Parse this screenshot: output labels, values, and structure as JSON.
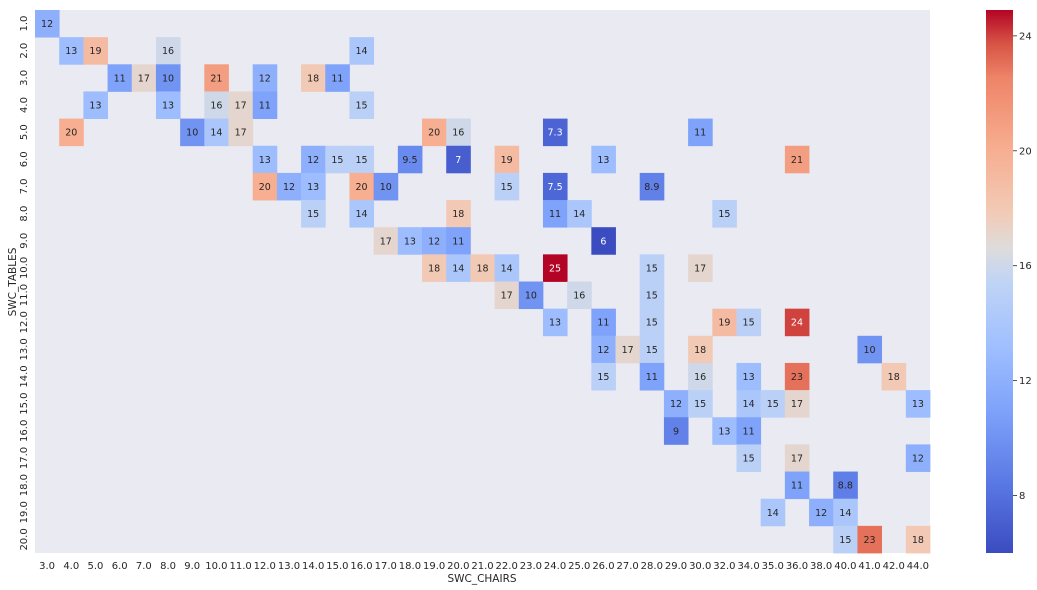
{
  "chart_data": {
    "type": "heatmap",
    "xlabel": "SWC_CHAIRS",
    "ylabel": "SWC_TABLES",
    "x": [
      "3.0",
      "4.0",
      "5.0",
      "6.0",
      "7.0",
      "8.0",
      "9.0",
      "10.0",
      "11.0",
      "12.0",
      "13.0",
      "14.0",
      "15.0",
      "16.0",
      "17.0",
      "18.0",
      "19.0",
      "20.0",
      "21.0",
      "22.0",
      "23.0",
      "24.0",
      "25.0",
      "26.0",
      "27.0",
      "28.0",
      "29.0",
      "30.0",
      "32.0",
      "34.0",
      "35.0",
      "36.0",
      "38.0",
      "40.0",
      "41.0",
      "42.0",
      "44.0"
    ],
    "y": [
      "1.0",
      "2.0",
      "3.0",
      "4.0",
      "5.0",
      "6.0",
      "7.0",
      "8.0",
      "9.0",
      "10.0",
      "11.0",
      "12.0",
      "13.0",
      "14.0",
      "15.0",
      "16.0",
      "17.0",
      "18.0",
      "19.0",
      "20.0"
    ],
    "cells": [
      [
        "1.0",
        "3.0",
        "12"
      ],
      [
        "2.0",
        "4.0",
        "13"
      ],
      [
        "2.0",
        "5.0",
        "19"
      ],
      [
        "2.0",
        "8.0",
        "16"
      ],
      [
        "2.0",
        "16.0",
        "14"
      ],
      [
        "3.0",
        "6.0",
        "11"
      ],
      [
        "3.0",
        "7.0",
        "17"
      ],
      [
        "3.0",
        "8.0",
        "10"
      ],
      [
        "3.0",
        "10.0",
        "21"
      ],
      [
        "3.0",
        "12.0",
        "12"
      ],
      [
        "3.0",
        "14.0",
        "18"
      ],
      [
        "3.0",
        "15.0",
        "11"
      ],
      [
        "4.0",
        "5.0",
        "13"
      ],
      [
        "4.0",
        "8.0",
        "13"
      ],
      [
        "4.0",
        "10.0",
        "16"
      ],
      [
        "4.0",
        "11.0",
        "17"
      ],
      [
        "4.0",
        "12.0",
        "11"
      ],
      [
        "4.0",
        "16.0",
        "15"
      ],
      [
        "5.0",
        "4.0",
        "20"
      ],
      [
        "5.0",
        "9.0",
        "10"
      ],
      [
        "5.0",
        "10.0",
        "14"
      ],
      [
        "5.0",
        "11.0",
        "17"
      ],
      [
        "5.0",
        "19.0",
        "20"
      ],
      [
        "5.0",
        "20.0",
        "16"
      ],
      [
        "5.0",
        "24.0",
        "7.3"
      ],
      [
        "5.0",
        "30.0",
        "11"
      ],
      [
        "6.0",
        "12.0",
        "13"
      ],
      [
        "6.0",
        "14.0",
        "12"
      ],
      [
        "6.0",
        "15.0",
        "15"
      ],
      [
        "6.0",
        "16.0",
        "15"
      ],
      [
        "6.0",
        "18.0",
        "9.5"
      ],
      [
        "6.0",
        "20.0",
        "7"
      ],
      [
        "6.0",
        "22.0",
        "19"
      ],
      [
        "6.0",
        "26.0",
        "13"
      ],
      [
        "6.0",
        "36.0",
        "21"
      ],
      [
        "7.0",
        "12.0",
        "20"
      ],
      [
        "7.0",
        "13.0",
        "12"
      ],
      [
        "7.0",
        "14.0",
        "13"
      ],
      [
        "7.0",
        "16.0",
        "20"
      ],
      [
        "7.0",
        "17.0",
        "10"
      ],
      [
        "7.0",
        "22.0",
        "15"
      ],
      [
        "7.0",
        "24.0",
        "7.5"
      ],
      [
        "7.0",
        "28.0",
        "8.9"
      ],
      [
        "8.0",
        "14.0",
        "15"
      ],
      [
        "8.0",
        "16.0",
        "14"
      ],
      [
        "8.0",
        "20.0",
        "18"
      ],
      [
        "8.0",
        "24.0",
        "11"
      ],
      [
        "8.0",
        "25.0",
        "14"
      ],
      [
        "8.0",
        "32.0",
        "15"
      ],
      [
        "9.0",
        "17.0",
        "17"
      ],
      [
        "9.0",
        "18.0",
        "13"
      ],
      [
        "9.0",
        "19.0",
        "12"
      ],
      [
        "9.0",
        "20.0",
        "11"
      ],
      [
        "9.0",
        "26.0",
        "6"
      ],
      [
        "10.0",
        "19.0",
        "18"
      ],
      [
        "10.0",
        "20.0",
        "14"
      ],
      [
        "10.0",
        "21.0",
        "18"
      ],
      [
        "10.0",
        "22.0",
        "14"
      ],
      [
        "10.0",
        "24.0",
        "25"
      ],
      [
        "10.0",
        "28.0",
        "15"
      ],
      [
        "10.0",
        "30.0",
        "17"
      ],
      [
        "11.0",
        "22.0",
        "17"
      ],
      [
        "11.0",
        "23.0",
        "10"
      ],
      [
        "11.0",
        "25.0",
        "16"
      ],
      [
        "11.0",
        "28.0",
        "15"
      ],
      [
        "12.0",
        "24.0",
        "13"
      ],
      [
        "12.0",
        "26.0",
        "11"
      ],
      [
        "12.0",
        "28.0",
        "15"
      ],
      [
        "12.0",
        "32.0",
        "19"
      ],
      [
        "12.0",
        "34.0",
        "15"
      ],
      [
        "12.0",
        "36.0",
        "24"
      ],
      [
        "13.0",
        "26.0",
        "12"
      ],
      [
        "13.0",
        "27.0",
        "17"
      ],
      [
        "13.0",
        "28.0",
        "15"
      ],
      [
        "13.0",
        "30.0",
        "18"
      ],
      [
        "13.0",
        "41.0",
        "10"
      ],
      [
        "14.0",
        "26.0",
        "15"
      ],
      [
        "14.0",
        "28.0",
        "11"
      ],
      [
        "14.0",
        "30.0",
        "16"
      ],
      [
        "14.0",
        "34.0",
        "13"
      ],
      [
        "14.0",
        "36.0",
        "23"
      ],
      [
        "14.0",
        "42.0",
        "18"
      ],
      [
        "15.0",
        "29.0",
        "12"
      ],
      [
        "15.0",
        "30.0",
        "15"
      ],
      [
        "15.0",
        "34.0",
        "14"
      ],
      [
        "15.0",
        "35.0",
        "15"
      ],
      [
        "15.0",
        "36.0",
        "17"
      ],
      [
        "15.0",
        "44.0",
        "13"
      ],
      [
        "16.0",
        "29.0",
        "9"
      ],
      [
        "16.0",
        "32.0",
        "13"
      ],
      [
        "16.0",
        "34.0",
        "11"
      ],
      [
        "17.0",
        "34.0",
        "15"
      ],
      [
        "17.0",
        "36.0",
        "17"
      ],
      [
        "17.0",
        "44.0",
        "12"
      ],
      [
        "18.0",
        "36.0",
        "11"
      ],
      [
        "18.0",
        "40.0",
        "8.8"
      ],
      [
        "19.0",
        "35.0",
        "14"
      ],
      [
        "19.0",
        "38.0",
        "12"
      ],
      [
        "19.0",
        "40.0",
        "14"
      ],
      [
        "20.0",
        "40.0",
        "15"
      ],
      [
        "20.0",
        "41.0",
        "23"
      ],
      [
        "20.0",
        "44.0",
        "18"
      ]
    ],
    "vmin": 6,
    "vmax": 24.9,
    "colorbar_ticks": [
      "8",
      "12",
      "16",
      "20",
      "24"
    ],
    "colormap": "coolwarm",
    "background": "#eaeaf2"
  }
}
